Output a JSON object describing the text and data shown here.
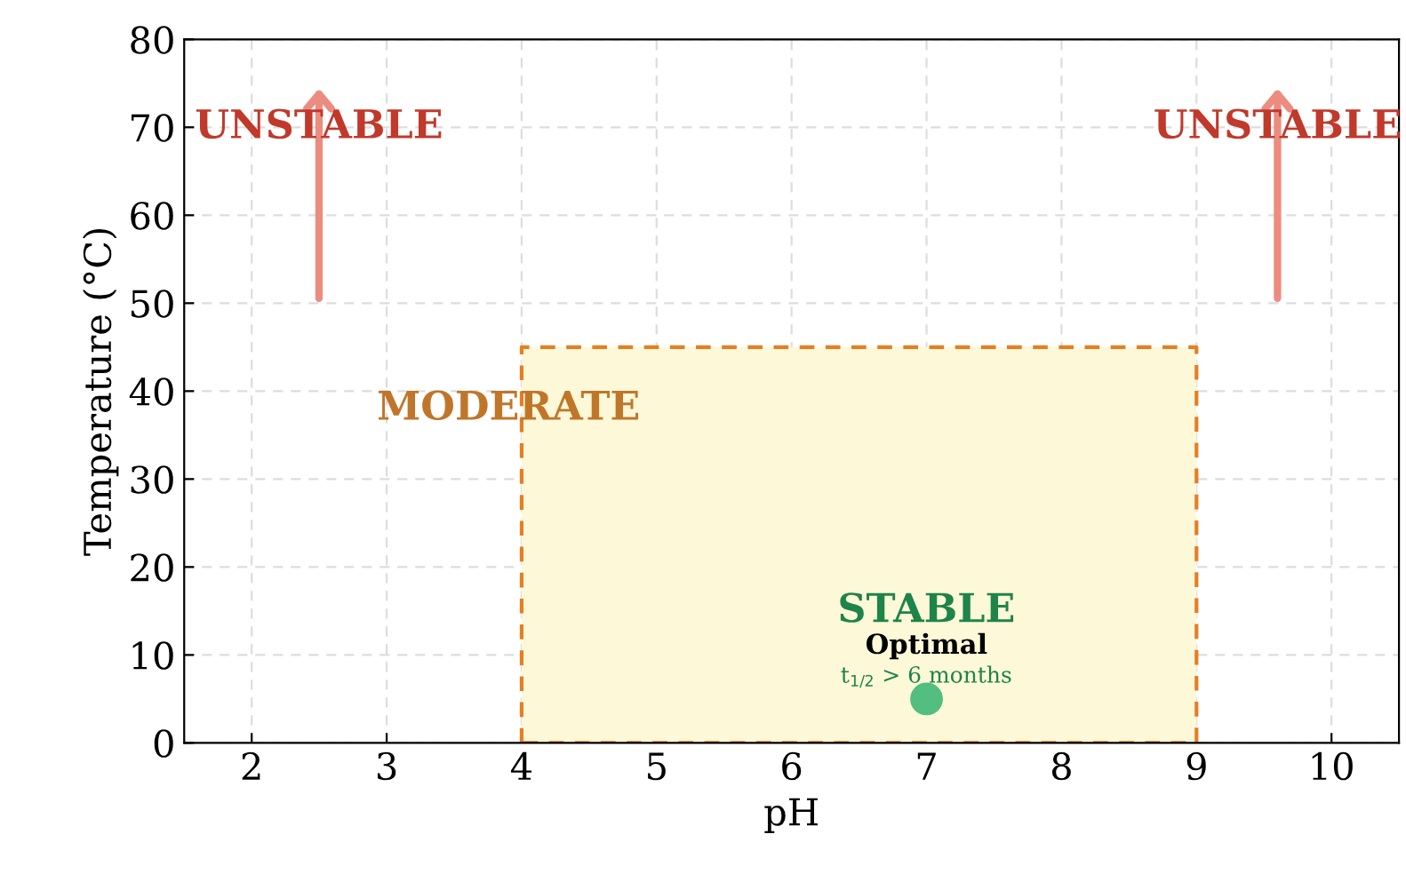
{
  "chart_data": {
    "type": "scatter",
    "xlabel": "pH",
    "ylabel": "Temperature (°C)",
    "xlim": [
      1.5,
      10.5
    ],
    "xticks": [
      2,
      3,
      4,
      5,
      6,
      7,
      8,
      9,
      10
    ],
    "ylim": [
      0,
      80
    ],
    "yticks": [
      0,
      10,
      20,
      30,
      40,
      50,
      60,
      70,
      80
    ],
    "grid": true,
    "series": [
      {
        "type": "area",
        "color": "#fdf8d8",
        "line_style": "dashed",
        "x": [
          4,
          9
        ],
        "values": [
          45,
          45
        ]
      },
      {
        "color": "#52be80",
        "marker": "circle",
        "x": [
          7
        ],
        "values": [
          5
        ]
      }
    ],
    "annotations": [
      "UNSTABLE",
      "UNSTABLE",
      "MODERATE",
      "STABLE",
      "Optimal",
      "t$_{1/2}$ > 6 months"
    ]
  }
}
